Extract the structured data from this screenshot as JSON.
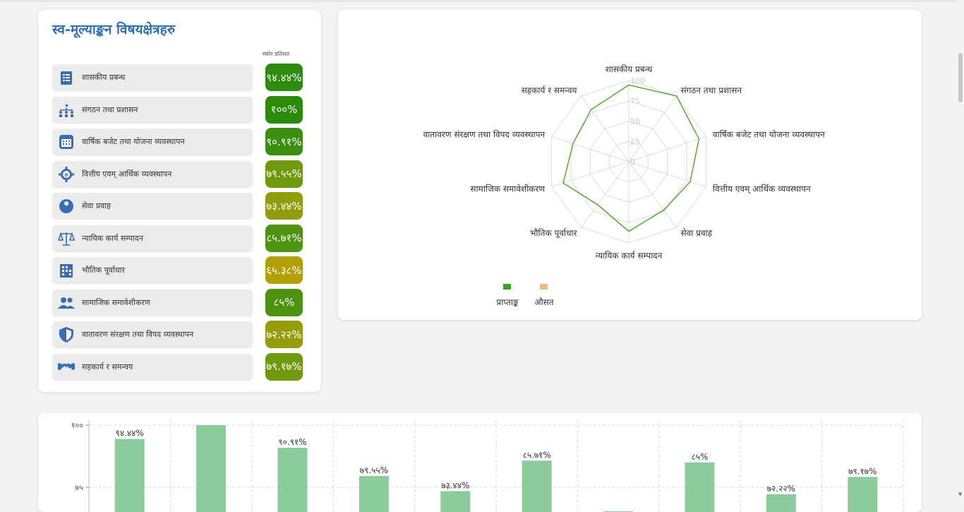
{
  "self_assessment": {
    "title": "स्व-मूल्याङ्कन विषयक्षेत्रहरु",
    "score_header": "स्कोर प्रतिशत",
    "items": [
      {
        "label": "शासकीय प्रबन्ध",
        "score": "९४.४४%",
        "value": 94.44,
        "color": "#2e8b0f",
        "icon": "clipboard-list-icon"
      },
      {
        "label": "संगठन तथा प्रशासन",
        "score": "१००%",
        "value": 100,
        "color": "#2a8a0a",
        "icon": "org-chart-icon"
      },
      {
        "label": "वार्षिक बजेट तथा योजना व्यवस्थापन",
        "score": "९०.९१%",
        "value": 90.91,
        "color": "#3a8f10",
        "icon": "calendar-icon"
      },
      {
        "label": "वित्तीय एवम् आर्थिक व्यवस्थापन",
        "score": "७९.५५%",
        "value": 79.55,
        "color": "#6f9a0e",
        "icon": "rupee-gear-icon"
      },
      {
        "label": "सेवा प्रवाह",
        "score": "७३.४४%",
        "value": 73.44,
        "color": "#8f9c0c",
        "icon": "wrench-icon"
      },
      {
        "label": "न्यायिक कार्य सम्पादन",
        "score": "८५.७१%",
        "value": 85.71,
        "color": "#4f9410",
        "icon": "scales-icon"
      },
      {
        "label": "भौतिक पूर्वाधार",
        "score": "६५.३८%",
        "value": 65.38,
        "color": "#b39f08",
        "icon": "building-icon"
      },
      {
        "label": "सामाजिक समावेशीकरण",
        "score": "८५%",
        "value": 85,
        "color": "#4d930f",
        "icon": "people-icon"
      },
      {
        "label": "वातावरण संरक्षण तथा विपद व्यवस्थापन",
        "score": "७२.२२%",
        "value": 72.22,
        "color": "#959d0b",
        "icon": "shield-icon"
      },
      {
        "label": "सहकार्य र समन्वय",
        "score": "७९.१७%",
        "value": 79.17,
        "color": "#6f9a0e",
        "icon": "handshake-icon"
      }
    ]
  },
  "chart_data": [
    {
      "type": "radar",
      "axes": [
        "शासकीय प्रबन्ध",
        "संगठन तथा प्रशासन",
        "वार्षिक बजेट तथा योजना व्यवस्थापन",
        "वित्तीय एवम् आर्थिक व्यवस्थापन",
        "सेवा प्रवाह",
        "न्यायिक कार्य सम्पादन",
        "भौतिक पूर्वाधार",
        "सामाजिक समावेशीकरण",
        "वातावरण संरक्षण तथा विपद व्यवस्थापन",
        "सहकार्य र समन्वय"
      ],
      "ticks": [
        "0",
        "25",
        "50",
        "75",
        "100"
      ],
      "range": [
        0,
        100
      ],
      "series": [
        {
          "name": "प्राप्ताङ्क",
          "color": "#3aa517",
          "values": [
            94.44,
            100,
            90.91,
            79.55,
            73.44,
            85.71,
            65.38,
            85,
            72.22,
            79.17
          ]
        },
        {
          "name": "औसत",
          "color": "#f2b97a",
          "values": []
        }
      ],
      "legend": "bottom-left"
    },
    {
      "type": "bar",
      "categories": [
        "शासकीय प्रबन्ध",
        "संगठन तथा प्रशासन",
        "वार्षिक बजेट तथा योजना व्यवस्थापन",
        "वित्तीय एवम् आर्थिक व्यवस्थापन",
        "सेवा प्रवाह",
        "न्यायिक कार्य सम्पादन",
        "भौतिक पूर्वाधार",
        "सामाजिक समावेशीकरण",
        "वातावरण संरक्षण तथा विपद व्यवस्थापन",
        "सहकार्य र समन्वय"
      ],
      "values": [
        94.44,
        100,
        90.91,
        79.55,
        73.44,
        85.71,
        65.38,
        85,
        72.22,
        79.17
      ],
      "labels": [
        "९४.४४%",
        "",
        "९०.९१%",
        "७९.५५%",
        "७३.४४%",
        "८५.७१%",
        "",
        "८५%",
        "७२.२२%",
        "७९.१७%"
      ],
      "y_ticks": [
        "१००",
        "७५"
      ],
      "color": "#8ccc9c",
      "grid": true
    }
  ]
}
